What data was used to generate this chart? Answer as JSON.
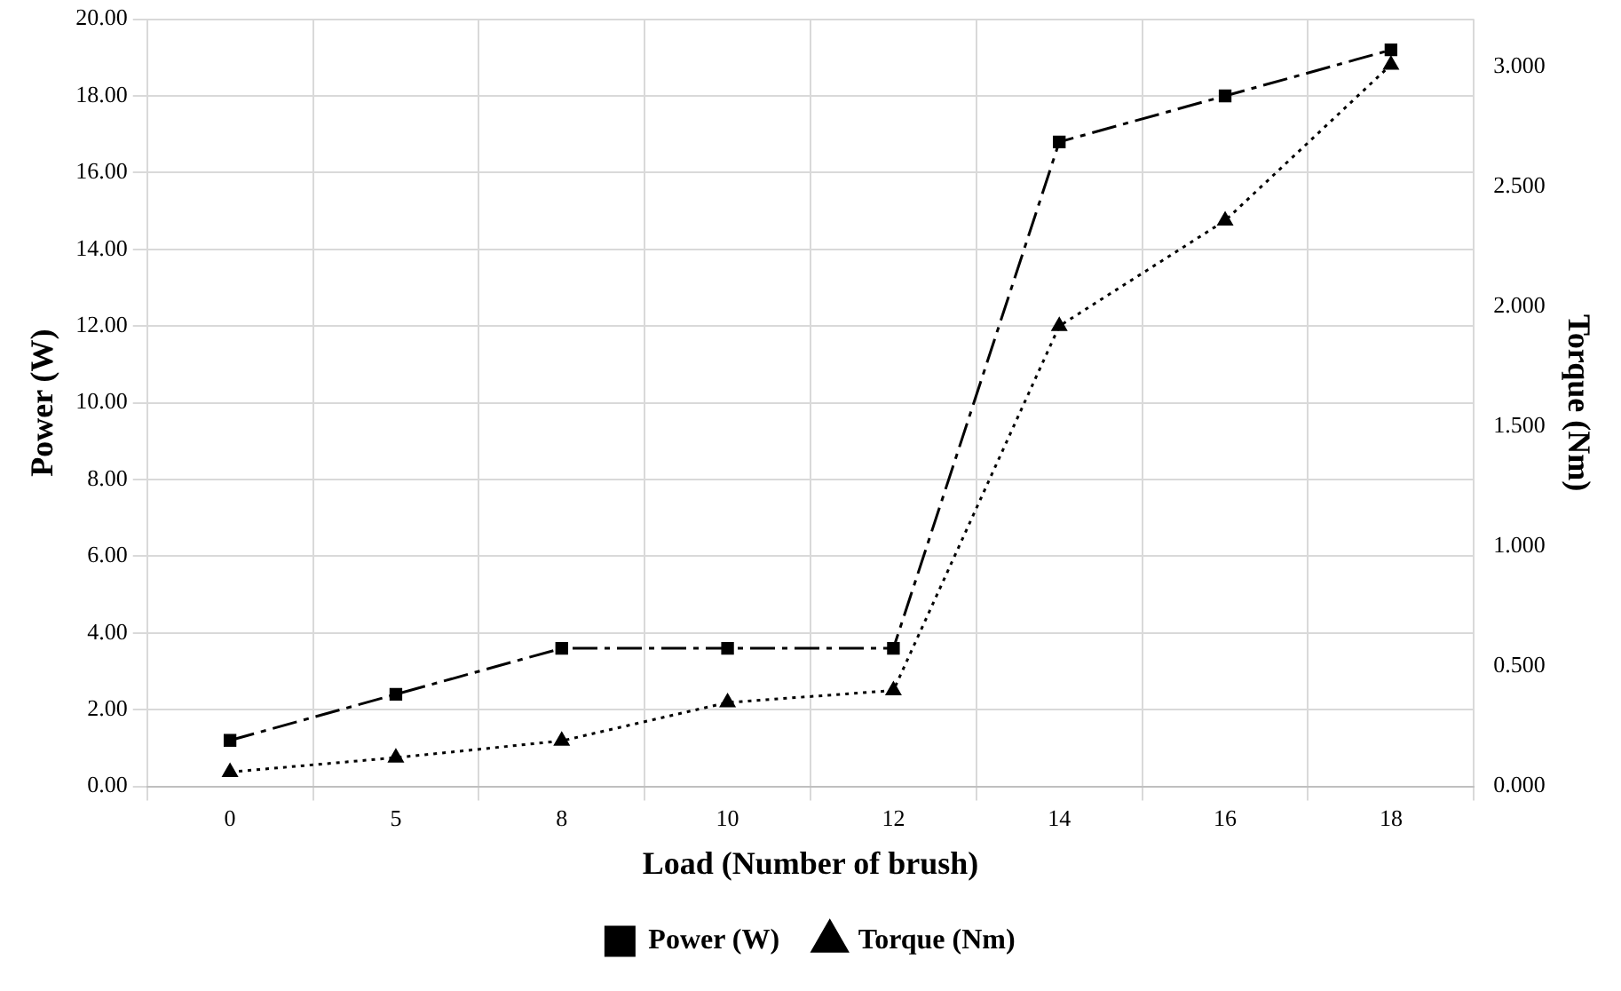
{
  "chart_data": {
    "type": "line",
    "xlabel": "Load (Number of brush)",
    "ylabel": "Power (W)",
    "y2label": "Torque (Nm)",
    "categories": [
      "0",
      "5",
      "8",
      "10",
      "12",
      "14",
      "16",
      "18"
    ],
    "series": [
      {
        "name": "Power (W)",
        "color": "#000000",
        "values": [
          1.2,
          2.4,
          3.6,
          3.6,
          3.6,
          16.8,
          18.0,
          19.2
        ],
        "marker": "square",
        "line_style": "dashdot"
      },
      {
        "name": "Torque (Nm)",
        "color": "#000000",
        "values": [
          0.06,
          0.12,
          0.19,
          0.35,
          0.4,
          1.92,
          2.36,
          3.01
        ],
        "marker": "triangle",
        "line_style": "dotted",
        "axis": "y2"
      }
    ],
    "ylim": [
      0,
      20
    ],
    "yticks": [
      {
        "value": 0,
        "label": "0.00"
      },
      {
        "value": 2,
        "label": "2.00"
      },
      {
        "value": 4,
        "label": "4.00"
      },
      {
        "value": 6,
        "label": "6.00"
      },
      {
        "value": 8,
        "label": "8.00"
      },
      {
        "value": 10,
        "label": "10.00"
      },
      {
        "value": 12,
        "label": "12.00"
      },
      {
        "value": 14,
        "label": "14.00"
      },
      {
        "value": 16,
        "label": "16.00"
      },
      {
        "value": 18,
        "label": "18.00"
      },
      {
        "value": 20,
        "label": "20.00"
      }
    ],
    "y2lim": [
      0,
      3.2
    ],
    "y2ticks": [
      {
        "value": 0,
        "label": "0.000"
      },
      {
        "value": 0.5,
        "label": "0.500"
      },
      {
        "value": 1,
        "label": "1.000"
      },
      {
        "value": 1.5,
        "label": "1.500"
      },
      {
        "value": 2,
        "label": "2.000"
      },
      {
        "value": 2.5,
        "label": "2.500"
      },
      {
        "value": 3,
        "label": "3.000"
      }
    ],
    "grid": true,
    "legend": "bottom"
  }
}
